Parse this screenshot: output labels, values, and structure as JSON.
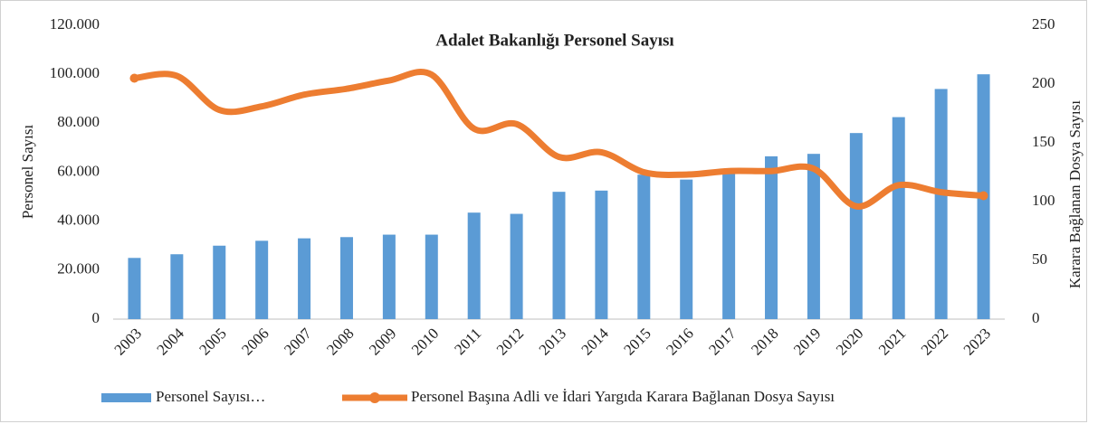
{
  "chart_data": {
    "type": "bar_line",
    "title": "Adalet Bakanlığı Personel Sayısı",
    "y_label": "Personel Sayısı",
    "y2_label": "Karara Bağlanan Dosya Sayısı",
    "categories": [
      "2003",
      "2004",
      "2005",
      "2006",
      "2007",
      "2008",
      "2009",
      "2010",
      "2011",
      "2012",
      "2013",
      "2014",
      "2015",
      "2016",
      "2017",
      "2018",
      "2019",
      "2020",
      "2021",
      "2022",
      "2023"
    ],
    "series": [
      {
        "name": "Personel Sayısı…",
        "type": "bar",
        "color": "#5b9bd5",
        "values": [
          25000,
          26500,
          30000,
          32000,
          33000,
          33500,
          34500,
          34500,
          43500,
          43000,
          52000,
          52500,
          59000,
          57000,
          61000,
          66500,
          67500,
          76000,
          82500,
          94000,
          100000
        ]
      },
      {
        "name": "Personel Başına Adli ve İdari Yargıda Karara Bağlanan Dosya Sayısı",
        "type": "line",
        "axis": "y2",
        "color": "#ed7d31",
        "values": [
          205,
          207,
          178,
          181,
          191,
          196,
          203,
          208,
          162,
          166,
          138,
          142,
          125,
          123,
          126,
          126,
          128,
          96,
          114,
          108,
          105
        ]
      }
    ],
    "ylim": [
      0,
      120000
    ],
    "yticks": [
      0,
      {
        "value": 20000,
        "label": "20.000"
      },
      {
        "value": 40000,
        "label": "40.000"
      },
      {
        "value": 60000,
        "label": "60.000"
      },
      {
        "value": 80000,
        "label": "80.000"
      },
      {
        "value": 100000,
        "label": "100.000"
      },
      {
        "value": 120000,
        "label": "120.000"
      }
    ],
    "y2lim": [
      0,
      250
    ],
    "y2ticks": [
      0,
      50,
      100,
      150,
      200,
      250
    ],
    "grid": false,
    "legend": "bottom"
  }
}
